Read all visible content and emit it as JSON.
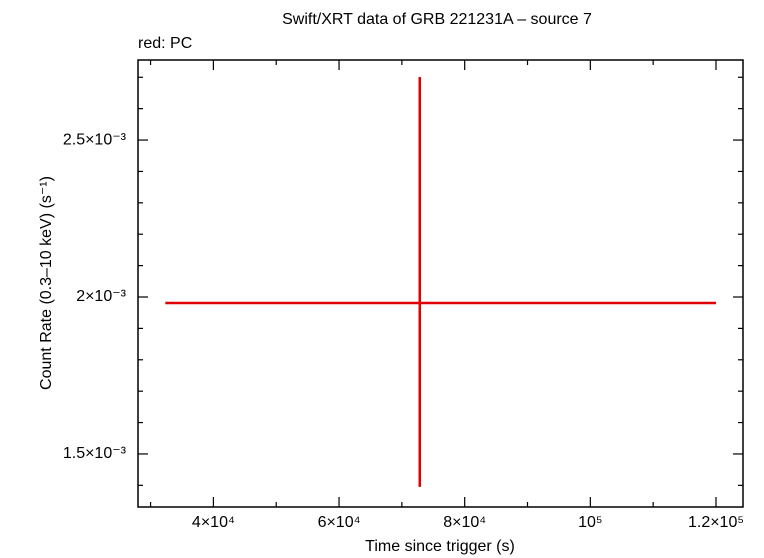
{
  "chart_data": {
    "type": "errorbar",
    "title": "Swift/XRT data of GRB 221231A – source 7",
    "subtitle": "red: PC",
    "x_label": "Time since trigger (s)",
    "y_label": "Count Rate (0.3–10 keV) (s⁻¹)",
    "xlim": [
      28000,
      124300
    ],
    "ylim": [
      0.001331,
      0.002755
    ],
    "xticks": [
      {
        "value": 40000,
        "label": "4×10⁴"
      },
      {
        "value": 60000,
        "label": "6×10⁴"
      },
      {
        "value": 80000,
        "label": "8×10⁴"
      },
      {
        "value": 100000,
        "label": "10⁵"
      },
      {
        "value": 120000,
        "label": "1.2×10⁵"
      }
    ],
    "yticks": [
      {
        "value": 0.0015,
        "label": "1.5×10⁻³"
      },
      {
        "value": 0.002,
        "label": "2×10⁻³"
      },
      {
        "value": 0.0025,
        "label": "2.5×10⁻³"
      }
    ],
    "xminorticks": [
      30000,
      50000,
      70000,
      90000,
      110000
    ],
    "yminorticks": [
      0.0014,
      0.0016,
      0.0017,
      0.0018,
      0.0019,
      0.0021,
      0.0022,
      0.0023,
      0.0024,
      0.0026,
      0.0027
    ],
    "series": [
      {
        "color": "#e00000",
        "x": [
          72850
        ],
        "y": [
          0.001981
        ],
        "xerr_minus": [
          40500
        ],
        "xerr_plus": [
          47150
        ],
        "yerr_minus": [
          0.000586
        ],
        "yerr_plus": [
          0.00072
        ]
      }
    ]
  }
}
